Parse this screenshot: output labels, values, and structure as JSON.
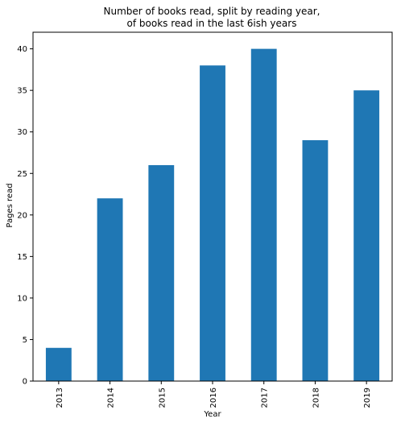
{
  "chart_data": {
    "type": "bar",
    "title_lines": [
      "Number of books read, split by reading year,",
      "of books read in the last 6ish years"
    ],
    "xlabel": "Year",
    "ylabel": "Pages read",
    "categories": [
      "2013",
      "2014",
      "2015",
      "2016",
      "2017",
      "2018",
      "2019"
    ],
    "values": [
      4,
      22,
      26,
      38,
      40,
      29,
      35
    ],
    "ylim": [
      0,
      42
    ],
    "yticks": [
      0,
      5,
      10,
      15,
      20,
      25,
      30,
      35,
      40
    ],
    "grid": false,
    "legend": "none",
    "bar_color": "#1f77b4"
  }
}
